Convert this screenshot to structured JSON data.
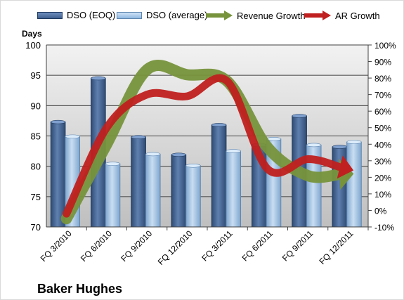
{
  "chart_data": {
    "type": "bar+line",
    "categories": [
      "FQ 3/2010",
      "FQ 6/2010",
      "FQ 9/2010",
      "FQ 12/2010",
      "FQ 3/2011",
      "FQ 6/2011",
      "FQ 9/2011",
      "FQ 12/2011"
    ],
    "ylabel": "Days",
    "ylim": [
      70,
      100
    ],
    "yticks": [
      "70",
      "75",
      "80",
      "85",
      "90",
      "95",
      "100"
    ],
    "y2lim": [
      -10,
      100
    ],
    "y2ticks": [
      "-10%",
      "0%",
      "10%",
      "20%",
      "30%",
      "40%",
      "50%",
      "60%",
      "70%",
      "80%",
      "90%",
      "100%"
    ],
    "bar_series": [
      {
        "name": "DSO (EOQ)",
        "color": "#3f5f8f",
        "values": [
          87.3,
          94.5,
          84.8,
          81.9,
          86.8,
          83.5,
          88.3,
          83.2
        ]
      },
      {
        "name": "DSO (average)",
        "color": "#9ec3e6",
        "values": [
          84.9,
          80.4,
          82.0,
          80.1,
          82.5,
          84.5,
          83.5,
          84.0
        ]
      }
    ],
    "line_series": [
      {
        "name": "Revenue Growth",
        "color": "#77933c",
        "values": [
          -5,
          40,
          85,
          82,
          78,
          38,
          21,
          22
        ]
      },
      {
        "name": "AR Growth",
        "color": "#c0201f",
        "values": [
          -2,
          50,
          70,
          69,
          78,
          25,
          31,
          25
        ]
      }
    ],
    "grid": true,
    "legend_position": "top"
  },
  "company": "Baker Hughes"
}
